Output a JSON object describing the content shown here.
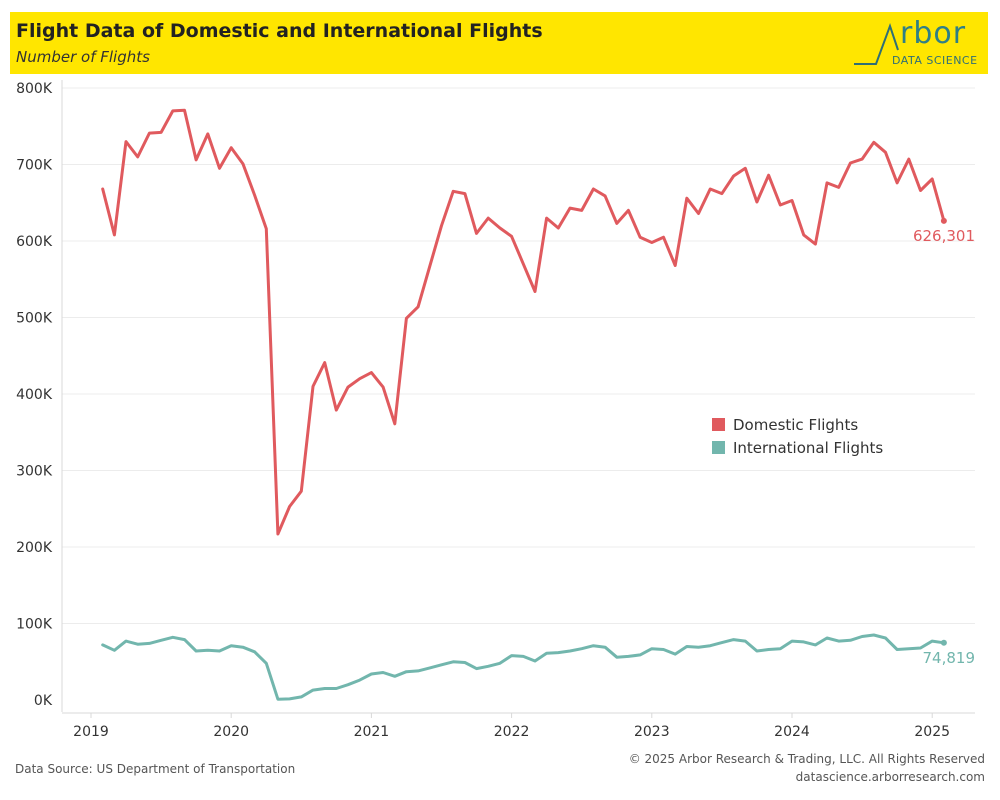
{
  "header": {
    "title": "Flight Data of Domestic and International Flights",
    "subtitle": "Number of Flights",
    "logo_text": "rbor",
    "logo_sub": "DATA SCIENCE"
  },
  "footer": {
    "source": "Data Source: US Department of Transportation",
    "copyright": "© 2025 Arbor Research & Trading, LLC. All Rights Reserved",
    "url": "datascience.arborresearch.com"
  },
  "colors": {
    "domestic": "#e05a5e",
    "international": "#72b6ad",
    "header_bg": "#ffe600"
  },
  "chart_data": {
    "type": "line",
    "title": "Flight Data of Domestic and International Flights",
    "subtitle": "Number of Flights",
    "x_start": "2019-02",
    "x_ticks": [
      "2019",
      "2020",
      "2021",
      "2022",
      "2023",
      "2024",
      "2025"
    ],
    "y_ticks": [
      "0K",
      "100K",
      "200K",
      "300K",
      "400K",
      "500K",
      "600K",
      "700K",
      "800K"
    ],
    "ylim": [
      0,
      800000
    ],
    "legend_position": "right-center",
    "series": [
      {
        "name": "Domestic Flights",
        "color": "#e05a5e",
        "end_label": "626,301",
        "values": [
          668000,
          608000,
          730000,
          710000,
          741000,
          742000,
          770000,
          771000,
          706000,
          740000,
          695000,
          722000,
          701000,
          660000,
          616000,
          217000,
          253000,
          273000,
          410000,
          441000,
          379000,
          409000,
          420000,
          428000,
          409000,
          361000,
          499000,
          514000,
          567000,
          620000,
          665000,
          662000,
          610000,
          630000,
          617000,
          606000,
          570000,
          534000,
          630000,
          617000,
          643000,
          640000,
          668000,
          659000,
          623000,
          640000,
          605000,
          598000,
          605000,
          568000,
          656000,
          636000,
          668000,
          662000,
          685000,
          695000,
          651000,
          686000,
          647000,
          653000,
          608000,
          596000,
          676000,
          670000,
          702000,
          707000,
          729000,
          716000,
          676000,
          707000,
          666000,
          681000,
          626301
        ]
      },
      {
        "name": "International Flights",
        "color": "#72b6ad",
        "end_label": "74,819",
        "values": [
          72000,
          65000,
          77000,
          73000,
          74000,
          78000,
          82000,
          79000,
          64000,
          65000,
          64000,
          71000,
          69000,
          63000,
          48000,
          1000,
          1500,
          4000,
          13000,
          15000,
          15000,
          20000,
          26000,
          34000,
          36000,
          31000,
          37000,
          38000,
          42000,
          46000,
          50000,
          49000,
          41000,
          44000,
          48000,
          58000,
          57000,
          51000,
          61000,
          62000,
          64000,
          67000,
          71000,
          69000,
          56000,
          57000,
          59000,
          67000,
          66000,
          60000,
          70000,
          69000,
          71000,
          75000,
          79000,
          77000,
          64000,
          66000,
          67000,
          77000,
          76000,
          72000,
          81000,
          77000,
          78000,
          83000,
          85000,
          81000,
          66000,
          67000,
          68000,
          77000,
          74819
        ]
      }
    ]
  }
}
